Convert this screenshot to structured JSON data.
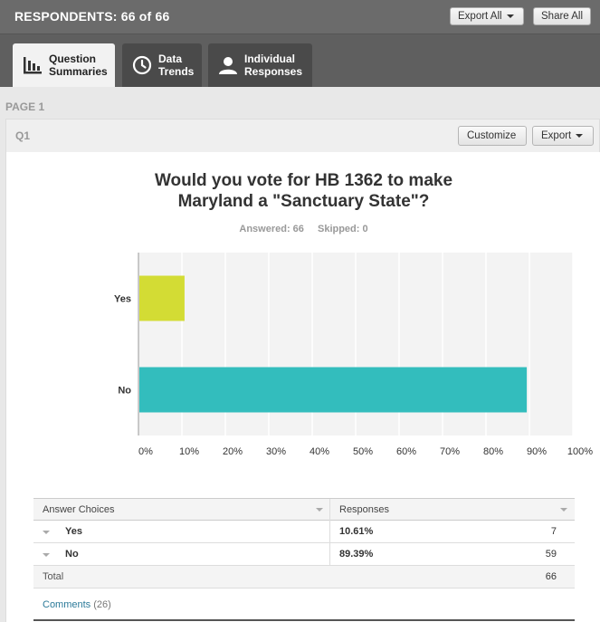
{
  "header": {
    "respondents_label": "RESPONDENTS: 66 of 66",
    "export_all_label": "Export All",
    "share_all_label": "Share All"
  },
  "tabs": [
    {
      "label": "Question\nSummaries",
      "icon": "bar-chart-icon",
      "active": true
    },
    {
      "label": "Data\nTrends",
      "icon": "clock-icon",
      "active": false
    },
    {
      "label": "Individual\nResponses",
      "icon": "person-icon",
      "active": false
    }
  ],
  "page_label": "PAGE 1",
  "question": {
    "number": "Q1",
    "customize_label": "Customize",
    "export_label": "Export",
    "title": "Would you vote for HB 1362 to make\nMaryland a \"Sanctuary State\"?",
    "answered": "Answered: 66",
    "skipped": "Skipped: 0"
  },
  "chart_data": {
    "type": "bar",
    "orientation": "horizontal",
    "categories": [
      "Yes",
      "No"
    ],
    "values": [
      10.61,
      89.39
    ],
    "colors": [
      "#d3dc34",
      "#33bdbd"
    ],
    "xlim": [
      0,
      100
    ],
    "xticks": [
      "0%",
      "10%",
      "20%",
      "30%",
      "40%",
      "50%",
      "60%",
      "70%",
      "80%",
      "90%",
      "100%"
    ],
    "grid": true
  },
  "table": {
    "headers": [
      "Answer Choices",
      "Responses"
    ],
    "rows": [
      {
        "choice": "Yes",
        "percent": "10.61%",
        "count": "7"
      },
      {
        "choice": "No",
        "percent": "89.39%",
        "count": "59"
      }
    ],
    "total_label": "Total",
    "total_count": "66"
  },
  "comments": {
    "link": "Comments",
    "count": "(26)"
  }
}
